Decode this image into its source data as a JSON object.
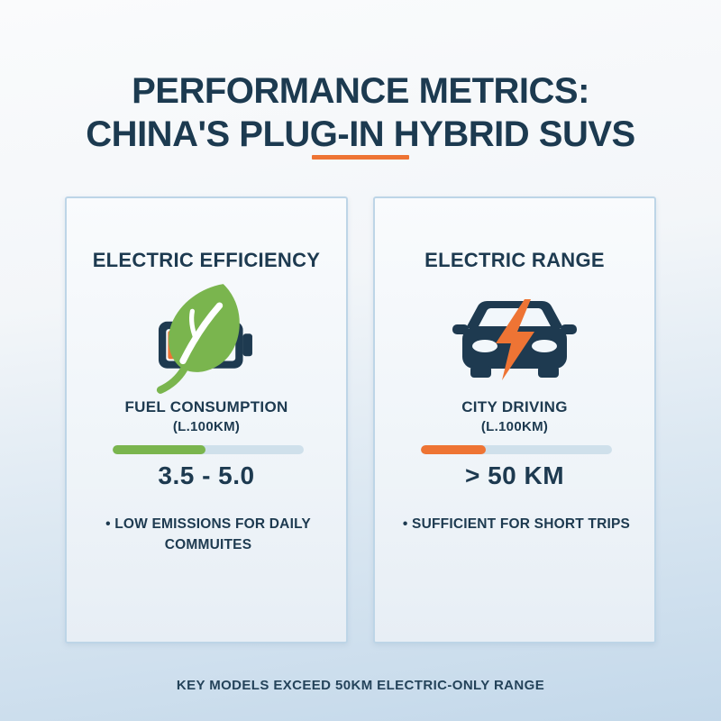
{
  "page": {
    "title_line1": "PERFORMANCE METRICS:",
    "title_line2": "CHINA'S PLUG-IN HYBRID SUVS",
    "footer": "KEY MODELS EXCEED 50KM ELECTRIC-ONLY RANGE"
  },
  "colors": {
    "navy_text": "#1d3a50",
    "accent_orange": "#ee7434",
    "leaf_green": "#7ab54e",
    "bar_track": "#cfe0eb",
    "card_border": "#bdd5e7",
    "background_top": "#fafbfc",
    "background_bottom": "#c3d8ea"
  },
  "cards": [
    {
      "heading": "ELECTRIC EFFICIENCY",
      "icon": "battery-leaf-icon",
      "metric_label": "FUEL CONSUMPTION",
      "metric_unit": "(L.100KM)",
      "bar": {
        "fill_percent": 48.5,
        "fill_color": "#7ab54e",
        "track_color": "#cfe0eb"
      },
      "value": "3.5 - 5.0",
      "bullet": "• LOW EMISSIONS FOR DAILY COMMUITES"
    },
    {
      "heading": "ELECTRIC RANGE",
      "icon": "car-lightning-icon",
      "metric_label": "CITY DRIVING",
      "metric_unit": "(L.100KM)",
      "bar": {
        "fill_percent": 34,
        "fill_color": "#ee7434",
        "track_color": "#cfe0eb"
      },
      "value": "> 50 KM",
      "bullet": "• SUFFICIENT FOR SHORT TRIPS"
    }
  ]
}
